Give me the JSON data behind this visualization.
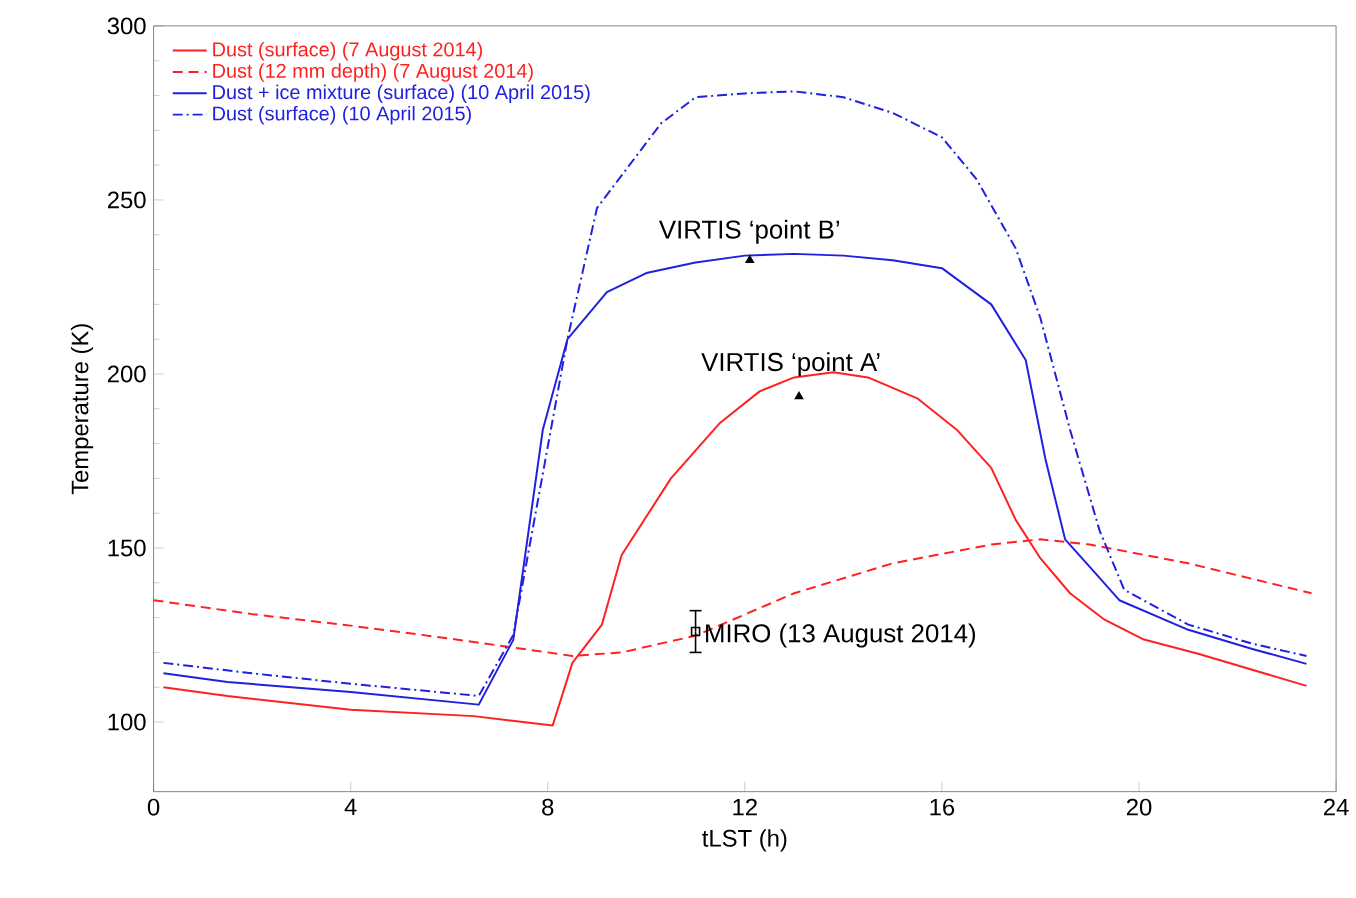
{
  "chart_data": {
    "type": "line",
    "xlabel": "tLST (h)",
    "ylabel": "Temperature (K)",
    "xlim": [
      0,
      24
    ],
    "xticks": [
      0,
      4,
      8,
      12,
      16,
      20,
      24
    ],
    "ylim": [
      80,
      300
    ],
    "yticks": [
      100,
      150,
      200,
      250,
      300
    ],
    "grid": false,
    "legend": "top left",
    "series": [
      {
        "name": "Dust (surface) (7 August 2014)",
        "color": "#ff2020",
        "line_style": "solid",
        "x": [
          0.2,
          1.5,
          4,
          6.5,
          8.1,
          8.5,
          9.1,
          9.5,
          10.5,
          11.5,
          12.3,
          13,
          13.8,
          14.5,
          15.5,
          16.3,
          17,
          17.5,
          18,
          18.6,
          19.3,
          20.1,
          21.2,
          22.3,
          23.4
        ],
        "values": [
          110,
          107.5,
          103.5,
          101.7,
          99,
          117,
          128,
          148,
          170,
          186,
          195,
          199,
          200.5,
          199,
          193,
          184,
          173,
          158,
          147,
          137,
          129.4,
          123.7,
          119.6,
          115,
          110.4
        ]
      },
      {
        "name": "Dust (12 mm depth) (7 August 2014)",
        "color": "#ff2020",
        "line_style": "dashed",
        "x": [
          0,
          2,
          4,
          6,
          8.5,
          9.5,
          11,
          13,
          15,
          17,
          18,
          19,
          21,
          23.5
        ],
        "values": [
          135,
          131,
          127.7,
          124,
          119,
          120,
          124.8,
          137,
          145.6,
          151,
          152.5,
          151,
          145.6,
          137
        ]
      },
      {
        "name": "Dust + ice mixture (surface) (10 April 2015)",
        "color": "#2020e0",
        "line_style": "solid",
        "x": [
          0.2,
          1.5,
          4,
          6.6,
          7.3,
          7.9,
          8.4,
          9.2,
          10,
          11,
          12,
          13,
          14,
          15,
          16,
          17,
          17.7,
          18.1,
          18.5,
          19.1,
          19.6,
          21,
          22.3,
          23.4
        ],
        "values": [
          114,
          111.5,
          108.6,
          105,
          123.6,
          184,
          210,
          223.5,
          229,
          232,
          234,
          234.5,
          234,
          232.7,
          230.4,
          220,
          204,
          175.6,
          152.5,
          143,
          135,
          126.5,
          121,
          116.7
        ]
      },
      {
        "name": "Dust (surface) (10 April 2015)",
        "color": "#2020e0",
        "line_style": "dashdot",
        "x": [
          0.2,
          2,
          4,
          6.6,
          7.3,
          8.4,
          9,
          10.3,
          11,
          12,
          13,
          14,
          15,
          16,
          16.7,
          17.5,
          18,
          18.6,
          19.2,
          19.7,
          21,
          22.3,
          23.4
        ],
        "values": [
          117,
          114,
          111,
          107.5,
          125,
          210,
          247.7,
          272,
          279.5,
          280.6,
          281.2,
          279.5,
          275,
          268,
          256,
          236,
          216,
          184,
          155,
          138,
          128,
          122.5,
          119
        ]
      },
      {
        "type": "scatter",
        "color": "#000000",
        "marker": "triangle",
        "x": [
          12.1,
          13.1
        ],
        "values": [
          232.7,
          193.5
        ]
      },
      {
        "type": "scatter",
        "color": "#000000",
        "marker": "square",
        "x": [
          11.0
        ],
        "values": [
          126
        ],
        "errors": [
          6
        ]
      }
    ],
    "annotations": [
      {
        "text": "VIRTIS ‘point B’",
        "x": 12.1,
        "y": 232.7
      },
      {
        "text": "VIRTIS ‘point A’",
        "x": 13.1,
        "y": 193.5
      },
      {
        "text": "MIRO (13 August 2014)",
        "x": 11.0,
        "y": 126
      }
    ]
  }
}
